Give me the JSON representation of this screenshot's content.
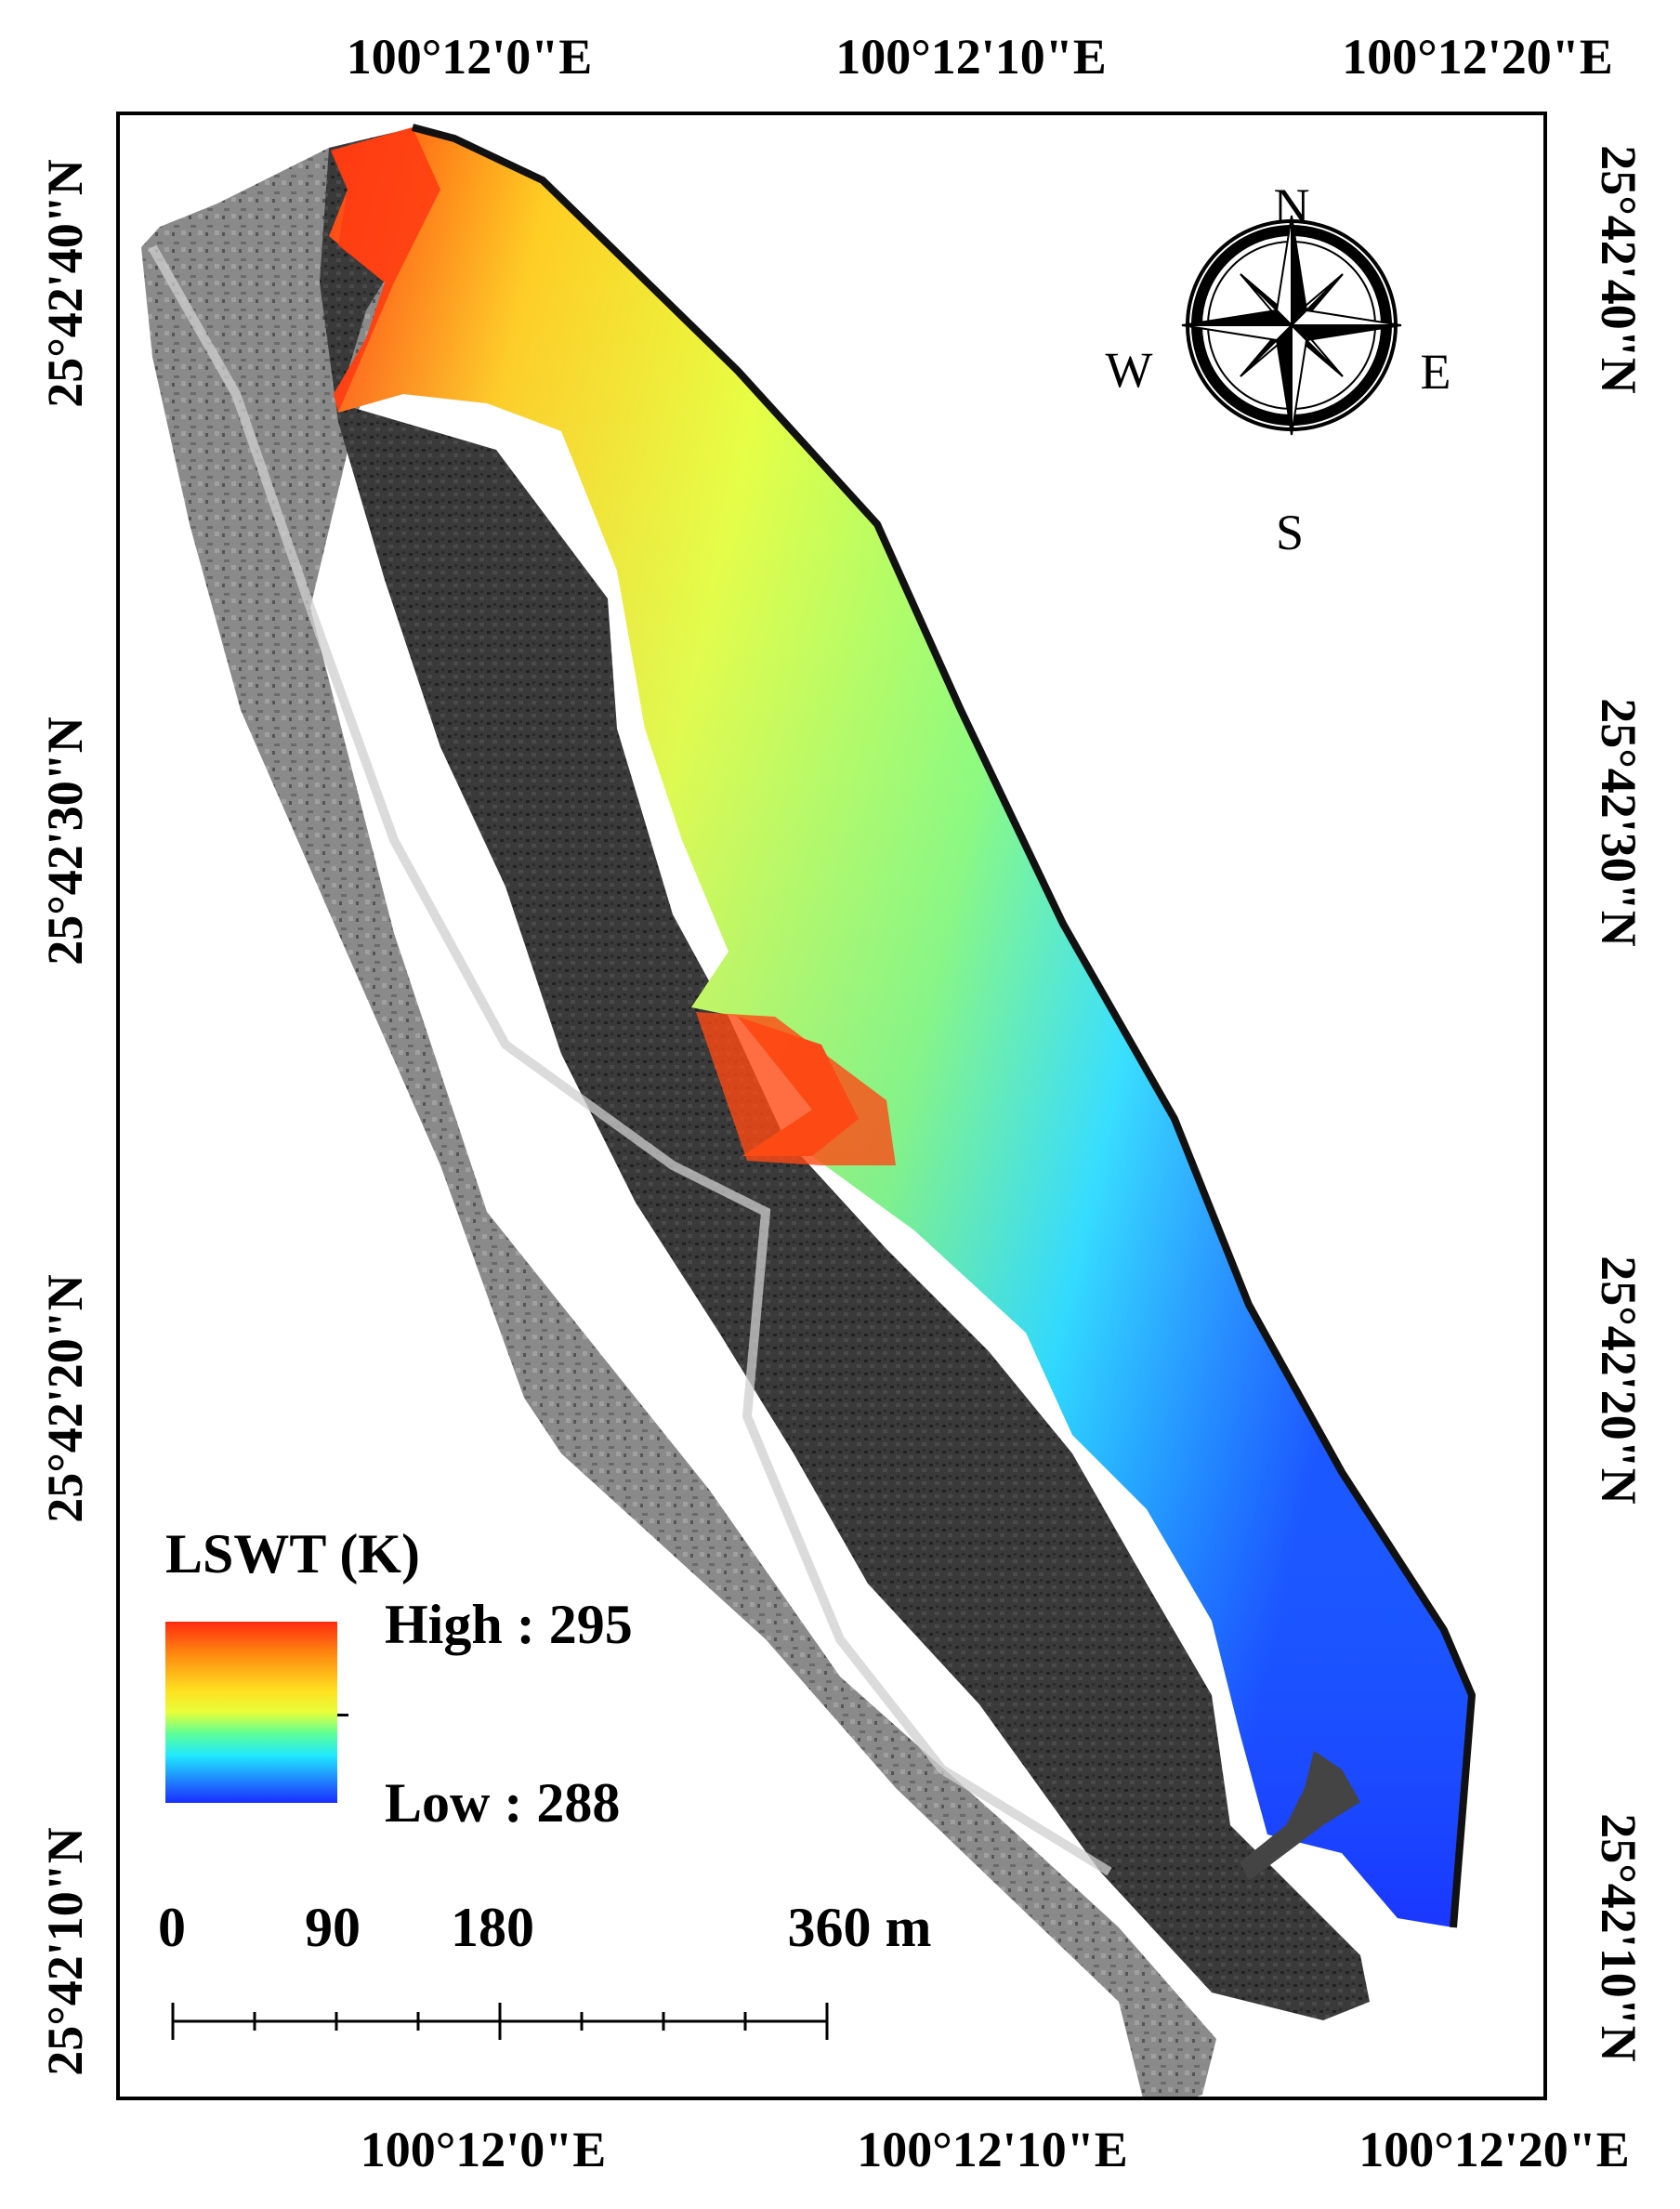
{
  "map": {
    "top_lon_labels": [
      "100°12'0\"E",
      "100°12'10\"E",
      "100°12'20\"E"
    ],
    "bottom_lon_labels": [
      "100°12'0\"E",
      "100°12'10\"E",
      "100°12'20\"E"
    ],
    "left_lat_labels": [
      "25°42'40\"N",
      "25°42'30\"N",
      "25°42'20\"N",
      "25°42'10\"N"
    ],
    "right_lat_labels": [
      "25°42'40\"N",
      "25°42'30\"N",
      "25°42'20\"N",
      "25°42'10\"N"
    ],
    "image_content": "grayscale aerial imagery of shoreline with colored lake surface water temperature overlay",
    "colors": {
      "high": "#ff2a10",
      "mid": "#e6ff3a",
      "low": "#1a2cff",
      "land": "#555555"
    }
  },
  "legend": {
    "title": "LSWT (K)",
    "high_label": "High : 295",
    "low_label": "Low : 288"
  },
  "scale_bar": {
    "labels": [
      "0",
      "90",
      "180",
      "360 m"
    ]
  },
  "north_arrow": {
    "n": "N",
    "e": "E",
    "s": "S",
    "w": "W"
  }
}
